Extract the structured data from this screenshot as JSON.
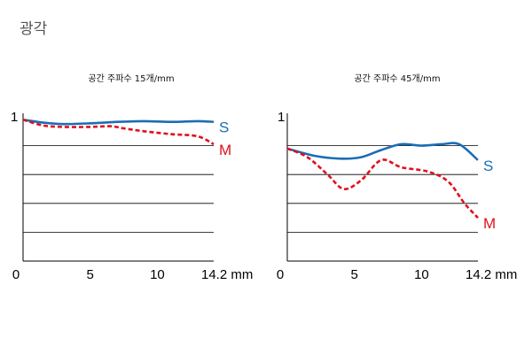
{
  "page": {
    "title": "광각"
  },
  "colors": {
    "S": "#1a6db5",
    "M": "#e0101e"
  },
  "chart_data": [
    {
      "type": "line",
      "title": "공간 주파수 15개/mm",
      "xlim": [
        0,
        14.2
      ],
      "ylim": [
        0,
        1
      ],
      "x_ticks": [
        "0",
        "5",
        "10",
        "14.2 mm"
      ],
      "x_tick_values": [
        0,
        5,
        10,
        14.2
      ],
      "y_tick_label": "1",
      "series": [
        {
          "name": "S",
          "style": "solid",
          "x": [
            0,
            1.5,
            3,
            5,
            7,
            9,
            11,
            13,
            14.2
          ],
          "y": [
            0.98,
            0.96,
            0.95,
            0.955,
            0.965,
            0.97,
            0.965,
            0.97,
            0.965
          ]
        },
        {
          "name": "M",
          "style": "dashed",
          "x": [
            0,
            1.5,
            3,
            5,
            6.5,
            7.5,
            9,
            11,
            13,
            14.2
          ],
          "y": [
            0.98,
            0.94,
            0.93,
            0.93,
            0.935,
            0.92,
            0.9,
            0.88,
            0.865,
            0.81
          ]
        }
      ]
    },
    {
      "type": "line",
      "title": "공간 주파수 45개/mm",
      "xlim": [
        0,
        14.2
      ],
      "ylim": [
        0,
        1
      ],
      "x_ticks": [
        "0",
        "5",
        "10",
        "14.2 mm"
      ],
      "x_tick_values": [
        0,
        5,
        10,
        14.2
      ],
      "y_tick_label": "1",
      "series": [
        {
          "name": "S",
          "style": "solid",
          "x": [
            0,
            2,
            4,
            5.5,
            7,
            8.5,
            10,
            11.5,
            12.8,
            14.2
          ],
          "y": [
            0.78,
            0.73,
            0.71,
            0.72,
            0.77,
            0.81,
            0.8,
            0.81,
            0.81,
            0.7
          ]
        },
        {
          "name": "M",
          "style": "dashed",
          "x": [
            0,
            1.5,
            3,
            4.2,
            5.5,
            7,
            8.5,
            10.5,
            12,
            13.2,
            14.2
          ],
          "y": [
            0.78,
            0.72,
            0.6,
            0.5,
            0.56,
            0.7,
            0.65,
            0.62,
            0.55,
            0.4,
            0.3
          ]
        }
      ]
    }
  ]
}
